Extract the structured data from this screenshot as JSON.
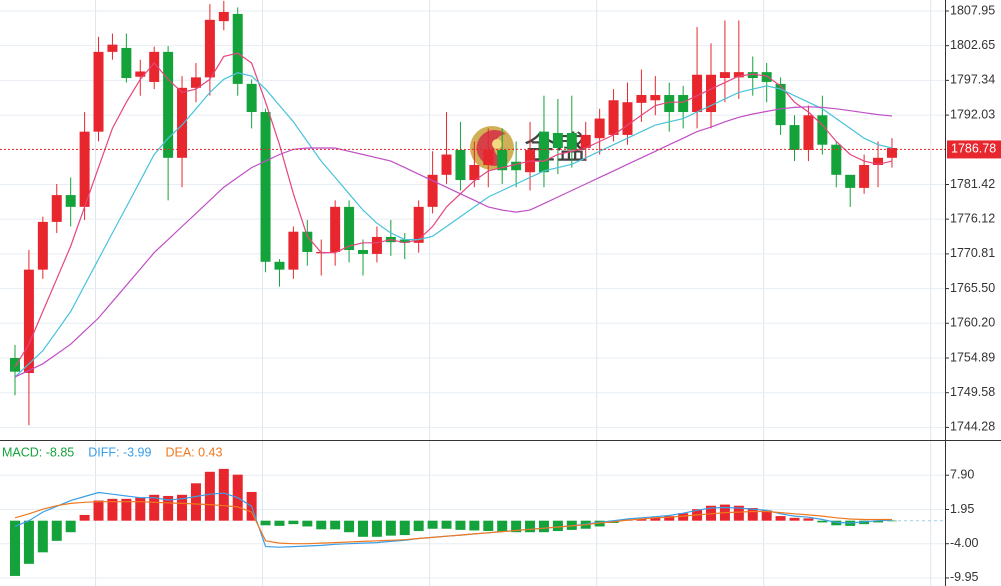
{
  "chart_data": [
    {
      "type": "candlestick",
      "open": [
        1754.89,
        1752.6,
        1768.4,
        1775.7,
        1779.8,
        1778.0,
        1789.5,
        1801.7,
        1802.3,
        1797.9,
        1797.1,
        1801.7,
        1785.5,
        1796.2,
        1797.8,
        1806.4,
        1807.5,
        1796.8,
        1792.5,
        1769.6,
        1768.4,
        1774.2,
        1770.9,
        1771.1,
        1778.0,
        1771.4,
        1770.8,
        1773.4,
        1773.0,
        1772.5,
        1778.0,
        1782.9,
        1786.7,
        1782.1,
        1784.4,
        1786.7,
        1784.9,
        1783.3,
        1789.5,
        1789.3,
        1789.3,
        1787.0,
        1788.5,
        1789.0,
        1789.0,
        1793.9,
        1794.3,
        1795.1,
        1795.1,
        1792.5,
        1792.5,
        1797.7,
        1797.8,
        1798.6,
        1798.6,
        1796.8,
        1790.5,
        1786.7,
        1792.0,
        1787.5,
        1782.9,
        1780.9,
        1784.4,
        1785.5
      ],
      "high": [
        1756.9,
        1771.4,
        1776.5,
        1781.5,
        1782.5,
        1792.5,
        1804.0,
        1804.5,
        1804.5,
        1800.5,
        1802.5,
        1802.6,
        1798.0,
        1800.0,
        1809.0,
        1809.5,
        1808.5,
        1797.5,
        1793.0,
        1770.0,
        1775.0,
        1776.0,
        1773.0,
        1779.0,
        1779.0,
        1773.0,
        1775.0,
        1776.0,
        1774.0,
        1779.0,
        1786.5,
        1792.5,
        1791.0,
        1788.0,
        1790.0,
        1790.0,
        1788.0,
        1791.0,
        1795.0,
        1794.5,
        1795.0,
        1791.0,
        1793.0,
        1796.0,
        1797.0,
        1799.0,
        1798.0,
        1797.0,
        1796.5,
        1805.5,
        1803.0,
        1806.5,
        1806.5,
        1801.0,
        1800.0,
        1797.8,
        1792.0,
        1793.5,
        1795.0,
        1788.0,
        1782.5,
        1786.0,
        1788.0,
        1788.5
      ],
      "low": [
        1749.2,
        1744.6,
        1767.0,
        1774.0,
        1775.0,
        1776.0,
        1788.0,
        1800.5,
        1797.0,
        1795.0,
        1796.0,
        1779.0,
        1781.0,
        1794.0,
        1795.0,
        1805.0,
        1795.0,
        1790.0,
        1768.0,
        1765.8,
        1767.0,
        1769.0,
        1767.5,
        1769.0,
        1769.5,
        1767.5,
        1769.5,
        1770.5,
        1770.0,
        1771.0,
        1777.0,
        1781.5,
        1780.5,
        1781.0,
        1781.0,
        1781.5,
        1781.0,
        1780.5,
        1781.0,
        1783.0,
        1784.0,
        1785.0,
        1786.0,
        1788.0,
        1787.5,
        1791.0,
        1792.0,
        1789.5,
        1790.0,
        1790.0,
        1790.0,
        1794.0,
        1794.5,
        1795.0,
        1794.0,
        1789.0,
        1785.0,
        1785.0,
        1786.0,
        1781.0,
        1778.0,
        1780.0,
        1781.0,
        1784.0
      ],
      "close": [
        1752.8,
        1768.4,
        1775.7,
        1779.8,
        1778.0,
        1789.5,
        1801.7,
        1802.8,
        1797.7,
        1798.7,
        1801.7,
        1785.5,
        1796.2,
        1797.8,
        1806.6,
        1807.8,
        1796.8,
        1792.5,
        1769.6,
        1768.4,
        1774.2,
        1771.1,
        1771.1,
        1778.0,
        1771.4,
        1770.8,
        1773.4,
        1772.6,
        1772.5,
        1778.0,
        1782.9,
        1786.0,
        1782.1,
        1784.4,
        1786.7,
        1783.6,
        1783.6,
        1786.7,
        1783.3,
        1787.0,
        1786.7,
        1789.0,
        1791.5,
        1794.3,
        1794.0,
        1795.1,
        1795.1,
        1792.5,
        1792.5,
        1798.2,
        1798.2,
        1798.6,
        1798.6,
        1797.7,
        1797.1,
        1790.5,
        1786.7,
        1792.0,
        1787.5,
        1782.9,
        1780.9,
        1784.4,
        1785.5,
        1787.0
      ],
      "up_color": "#e8262d",
      "down_color": "#14a33a",
      "lines": [
        {
          "color": "#e6457f",
          "values": [
            1753.5,
            1757,
            1762,
            1767,
            1772,
            1778,
            1784,
            1790,
            1794,
            1797.5,
            1800,
            1797.5,
            1795.5,
            1796,
            1797.5,
            1801,
            1801.5,
            1800,
            1794,
            1787.5,
            1780,
            1773.5,
            1771,
            1771,
            1772,
            1772.5,
            1772.5,
            1773,
            1772.5,
            1773,
            1775,
            1778,
            1780,
            1782,
            1783.5,
            1784,
            1784.5,
            1785,
            1785,
            1786,
            1786.5,
            1787,
            1788,
            1789,
            1790.5,
            1792,
            1793.5,
            1794,
            1794,
            1795,
            1796,
            1797,
            1798,
            1798.3,
            1798,
            1796.5,
            1794,
            1792.5,
            1790.5,
            1788,
            1786,
            1785,
            1784.5,
            1785
          ]
        },
        {
          "color": "#48c3dc",
          "values": [
            1752,
            1754,
            1756,
            1759,
            1762,
            1766,
            1770,
            1774,
            1778,
            1782,
            1786,
            1788.5,
            1790.5,
            1793,
            1795.5,
            1797.5,
            1798.5,
            1798,
            1796,
            1793.5,
            1791,
            1788,
            1785,
            1782.5,
            1780,
            1777.5,
            1775.5,
            1774,
            1773,
            1773,
            1773.5,
            1775,
            1776.5,
            1778,
            1779.5,
            1780.5,
            1781.5,
            1782.5,
            1783.5,
            1784,
            1784.5,
            1785.5,
            1786.5,
            1787.5,
            1788.5,
            1789.5,
            1790.5,
            1791,
            1791.5,
            1792.5,
            1793.5,
            1794.5,
            1795.5,
            1796,
            1796.5,
            1796,
            1795,
            1794,
            1793,
            1791.5,
            1790,
            1788.5,
            1787.5,
            1787
          ]
        },
        {
          "color": "#c04fc6",
          "values": [
            1752,
            1753,
            1754,
            1755.5,
            1757,
            1759,
            1761,
            1763.5,
            1766,
            1768.5,
            1771,
            1773,
            1775,
            1777,
            1779,
            1781,
            1782.5,
            1784,
            1785,
            1786,
            1786.8,
            1787,
            1787,
            1787,
            1786.5,
            1786,
            1785.5,
            1785,
            1784,
            1783,
            1782,
            1781,
            1780,
            1779,
            1778,
            1777.5,
            1777.2,
            1777.5,
            1778.5,
            1779.5,
            1780.5,
            1781.5,
            1782.5,
            1783.5,
            1784.5,
            1785.5,
            1786.5,
            1787.5,
            1788.5,
            1789.5,
            1790.2,
            1791,
            1791.7,
            1792.2,
            1792.6,
            1793,
            1793.2,
            1793.3,
            1793.2,
            1793,
            1792.7,
            1792.4,
            1792.1,
            1791.9
          ]
        }
      ],
      "ylim": [
        1742.35,
        1809.63
      ],
      "yticks": [
        1807.95,
        1802.65,
        1797.34,
        1792.03,
        1781.42,
        1776.12,
        1770.81,
        {
          "value": 1765.5,
          "label": "1765.50"
        },
        {
          "value": 1760.2,
          "label": "1760.20"
        },
        1754.89,
        1749.58,
        1744.28
      ],
      "current_price": 1786.78,
      "price_color": "#e8262d",
      "grid": true,
      "watermark": "金盛"
    },
    {
      "type": "macd",
      "legend": [
        {
          "label": "MACD: -8.85",
          "color": "#14a33a"
        },
        {
          "label": "DIFF: -3.99",
          "color": "#3a9ee8"
        },
        {
          "label": "DEA: 0.43",
          "color": "#f07820"
        }
      ],
      "values": [
        -9.6,
        -7.5,
        -5.5,
        -3.5,
        -2,
        1,
        3.5,
        3.8,
        3.8,
        4,
        4.5,
        4.3,
        4.5,
        6.5,
        8.5,
        9,
        8,
        5,
        -0.8,
        -0.9,
        -0.6,
        -1,
        -1.5,
        -1.5,
        -2,
        -2.8,
        -2.8,
        -2.6,
        -2.5,
        -1.8,
        -1.4,
        -1.4,
        -1.6,
        -1.7,
        -1.8,
        -1.9,
        -2,
        -2,
        -2,
        -1.8,
        -1.6,
        -1.4,
        -1,
        -0.4,
        0.2,
        0.3,
        0.6,
        0.8,
        1.3,
        2,
        2.6,
        2.8,
        2.6,
        2.2,
        1.8,
        0.8,
        0.5,
        0.4,
        -0.3,
        -0.8,
        -0.9,
        -0.6,
        -0.3,
        -0.1
      ],
      "up_color": "#e8262d",
      "down_color": "#14a33a",
      "lines": [
        {
          "color": "#3a9ee8",
          "values": [
            -1,
            0,
            1.5,
            2.5,
            3.5,
            4.2,
            4.9,
            4.6,
            4.3,
            4,
            4,
            3.6,
            3.8,
            4.2,
            4.6,
            4.8,
            4,
            2.5,
            -4.5,
            -4.6,
            -4.5,
            -4.4,
            -4.3,
            -4.1,
            -4,
            -3.9,
            -3.8,
            -3.6,
            -3.4,
            -3.1,
            -2.9,
            -2.7,
            -2.5,
            -2.3,
            -2.1,
            -1.9,
            -1.7,
            -1.5,
            -1.3,
            -1.1,
            -0.9,
            -0.6,
            -0.3,
            0,
            0.3,
            0.5,
            0.7,
            0.9,
            1.3,
            1.8,
            2.2,
            2.3,
            2.2,
            2,
            1.8,
            1.2,
            0.8,
            0.6,
            0.2,
            -0.3,
            -0.4,
            -0.2,
            0,
            0.1
          ]
        },
        {
          "color": "#f07820",
          "values": [
            0.5,
            1.2,
            2,
            2.6,
            3,
            3.2,
            3.3,
            3.3,
            3.3,
            3.3,
            3.2,
            3.1,
            3,
            2.9,
            2.8,
            2.6,
            2.4,
            1.5,
            -3.5,
            -3.9,
            -4,
            -4,
            -3.9,
            -3.8,
            -3.7,
            -3.6,
            -3.5,
            -3.4,
            -3.3,
            -3.1,
            -2.9,
            -2.7,
            -2.5,
            -2.3,
            -2.1,
            -1.9,
            -1.7,
            -1.5,
            -1.3,
            -1.1,
            -0.9,
            -0.7,
            -0.4,
            -0.2,
            0.1,
            0.3,
            0.5,
            0.6,
            0.8,
            1,
            1.2,
            1.4,
            1.5,
            1.6,
            1.6,
            1.4,
            1.2,
            1,
            0.8,
            0.5,
            0.3,
            0.2,
            0.2,
            0.2
          ]
        }
      ],
      "ylim": [
        -11.35,
        13.85
      ],
      "yticks": [
        {
          "value": 7.9,
          "label": "7.90"
        },
        1.95,
        {
          "value": -4,
          "label": "-4.00"
        },
        -9.95
      ],
      "grid": true
    }
  ]
}
